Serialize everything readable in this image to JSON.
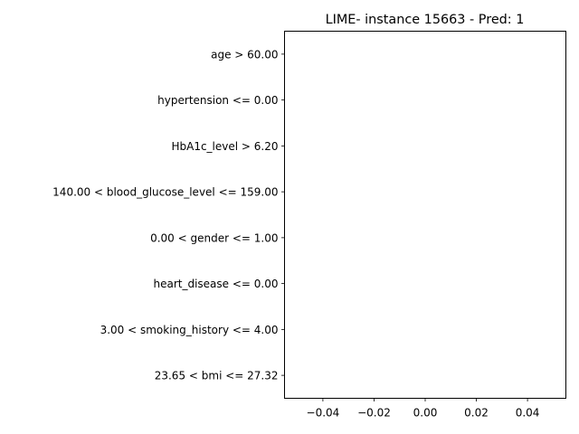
{
  "chart_data": {
    "type": "bar",
    "orientation": "horizontal",
    "title": "LIME- instance 15663 - Pred: 1",
    "xlabel": "",
    "ylabel": "",
    "categories": [
      "age > 60.00",
      "hypertension <= 0.00",
      "HbA1c_level > 6.20",
      "140.00 < blood_glucose_level <= 159.00",
      "0.00 < gender <= 1.00",
      "heart_disease <= 0.00",
      "3.00 < smoking_history <= 4.00",
      "23.65 < bmi <= 27.32"
    ],
    "values": [
      0,
      0,
      0,
      0,
      0,
      0,
      0,
      0
    ],
    "xlim": [
      -0.055,
      0.055
    ],
    "xticks": [
      -0.04,
      -0.02,
      0.0,
      0.02,
      0.04
    ],
    "xtick_labels": [
      "−0.04",
      "−0.02",
      "0.00",
      "0.02",
      "0.04"
    ],
    "grid": false,
    "colors": {
      "positive": "#008000",
      "negative": "#ff0000",
      "frame": "#000000"
    }
  }
}
